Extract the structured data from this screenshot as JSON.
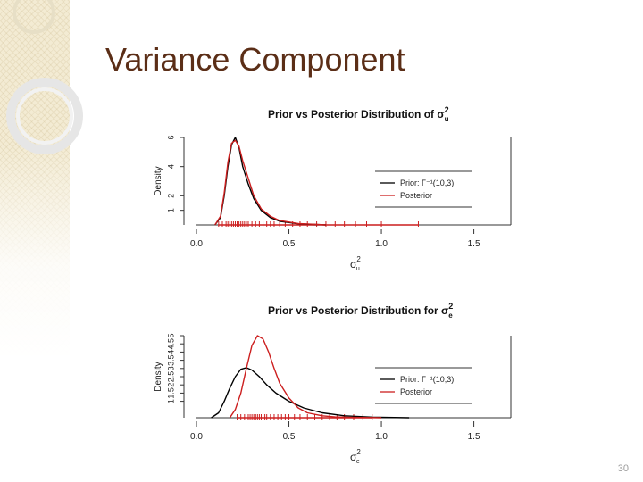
{
  "slide": {
    "title": "Variance Component",
    "page_number": "30"
  },
  "colors": {
    "title": "#5b2e17",
    "prior_line": "#000000",
    "posterior_line": "#cc1f1f",
    "rug": "#cc1f1f",
    "accent": "#e9dcb5"
  },
  "chart_data": [
    {
      "type": "line",
      "title": "Prior vs Posterior Distribution of σ",
      "title_superscript": "2",
      "title_subscript": "u",
      "xlabel": "σ",
      "xlabel_superscript": "2",
      "xlabel_subscript": "u",
      "ylabel": "Density",
      "xlim": [
        0.0,
        1.7
      ],
      "ylim": [
        0,
        6
      ],
      "x_ticks": [
        "0.0",
        "0.5",
        "1.0",
        "1.5"
      ],
      "y_ticks": [
        "1",
        "2",
        "4",
        "6"
      ],
      "legend_position": "right",
      "legend": [
        "Prior: Γ⁻¹(10,3)",
        "Posterior"
      ],
      "series": [
        {
          "name": "Prior: Γ⁻¹(10,3)",
          "color": "black",
          "x": [
            0.1,
            0.13,
            0.15,
            0.17,
            0.19,
            0.21,
            0.23,
            0.25,
            0.28,
            0.31,
            0.35,
            0.4,
            0.45,
            0.55,
            0.7
          ],
          "y": [
            0.0,
            0.5,
            2.0,
            4.0,
            5.5,
            6.0,
            5.3,
            4.0,
            2.8,
            1.8,
            1.0,
            0.5,
            0.25,
            0.08,
            0.0
          ]
        },
        {
          "name": "Posterior",
          "color": "red",
          "x": [
            0.1,
            0.13,
            0.15,
            0.17,
            0.19,
            0.21,
            0.23,
            0.25,
            0.28,
            0.31,
            0.35,
            0.4,
            0.45,
            0.55,
            0.7
          ],
          "y": [
            0.0,
            0.6,
            2.2,
            4.3,
            5.6,
            5.8,
            5.4,
            4.4,
            3.2,
            2.0,
            1.1,
            0.6,
            0.3,
            0.1,
            0.0
          ]
        }
      ],
      "rug": {
        "color": "red",
        "x": [
          0.12,
          0.14,
          0.16,
          0.17,
          0.18,
          0.19,
          0.2,
          0.21,
          0.22,
          0.23,
          0.24,
          0.25,
          0.26,
          0.27,
          0.28,
          0.3,
          0.32,
          0.34,
          0.36,
          0.38,
          0.4,
          0.42,
          0.45,
          0.48,
          0.52,
          0.56,
          0.6,
          0.65,
          0.7,
          0.75,
          0.8,
          0.86,
          0.92,
          1.0,
          1.2
        ]
      }
    },
    {
      "type": "line",
      "title": "Prior vs Posterior Distribution for σ",
      "title_superscript": "2",
      "title_subscript": "e",
      "xlabel": "σ",
      "xlabel_superscript": "2",
      "xlabel_subscript": "e",
      "ylabel": "Density",
      "xlim": [
        0.0,
        1.7
      ],
      "ylim": [
        0,
        5
      ],
      "x_ticks": [
        "0.0",
        "0.5",
        "1.0",
        "1.5"
      ],
      "y_ticks": [
        "1",
        "1.5",
        "2",
        "2.5",
        "3",
        "3.5",
        "4",
        "4.5",
        "5"
      ],
      "legend_position": "right",
      "legend": [
        "Prior: Γ⁻¹(10,3)",
        "Posterior"
      ],
      "series": [
        {
          "name": "Prior: Γ⁻¹(10,3)",
          "color": "black",
          "x": [
            0.08,
            0.12,
            0.15,
            0.18,
            0.21,
            0.24,
            0.27,
            0.3,
            0.34,
            0.38,
            0.43,
            0.5,
            0.58,
            0.68,
            0.8,
            0.95,
            1.15
          ],
          "y": [
            0.0,
            0.3,
            1.0,
            1.8,
            2.5,
            2.95,
            3.05,
            2.9,
            2.5,
            2.0,
            1.5,
            1.0,
            0.6,
            0.3,
            0.12,
            0.04,
            0.0
          ]
        },
        {
          "name": "Posterior",
          "color": "red",
          "x": [
            0.18,
            0.21,
            0.24,
            0.27,
            0.3,
            0.33,
            0.36,
            0.39,
            0.42,
            0.45,
            0.5,
            0.55,
            0.6,
            0.68,
            0.75,
            0.85,
            1.0
          ],
          "y": [
            0.0,
            0.5,
            1.5,
            3.0,
            4.4,
            5.0,
            4.8,
            4.0,
            3.0,
            2.1,
            1.2,
            0.6,
            0.3,
            0.12,
            0.05,
            0.02,
            0.0
          ]
        }
      ],
      "rug": {
        "color": "red",
        "x": [
          0.22,
          0.24,
          0.26,
          0.28,
          0.29,
          0.3,
          0.31,
          0.32,
          0.33,
          0.34,
          0.35,
          0.36,
          0.37,
          0.38,
          0.4,
          0.42,
          0.44,
          0.46,
          0.48,
          0.5,
          0.53,
          0.56,
          0.6,
          0.64,
          0.68,
          0.72,
          0.76,
          0.8,
          0.85,
          0.9,
          0.95
        ]
      }
    }
  ]
}
